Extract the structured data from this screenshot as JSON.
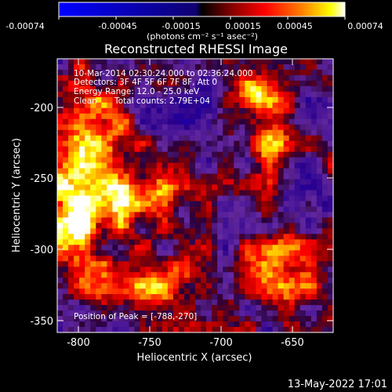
{
  "colorbar": {
    "ticks": [
      "-0.00074",
      "-0.00045",
      "-0.00015",
      "0.00015",
      "0.00045",
      "0.00074"
    ],
    "units": "(photons cm⁻² s⁻¹ asec⁻²)"
  },
  "footer": {
    "date": "13-May-2022 17:01"
  },
  "chart_data": {
    "type": "heatmap",
    "title": "Reconstructed RHESSI Image",
    "xlabel": "Heliocentric X (arcsec)",
    "ylabel": "Heliocentric Y (arcsec)",
    "xlim": [
      -815,
      -622
    ],
    "ylim": [
      -357,
      -165
    ],
    "x_ticks": [
      "-800",
      "-750",
      "-700",
      "-650"
    ],
    "y_ticks": [
      "-200",
      "-250",
      "-300",
      "-350"
    ],
    "colorbar_range": [
      -0.00074,
      0.00074
    ],
    "annotations": [
      "10-Mar-2014 02:30:24.000 to 02:36:24.000",
      "Detectors: 3F 4F 5F 6F 7F 8F, Att 0",
      "Energy Range: 12.0 - 25.0 keV",
      "Clean",
      "Total counts: 2.79E+04",
      "Position of Peak = [-788,-270]"
    ],
    "peak": {
      "x": -788,
      "y": -270
    },
    "colormap_colors": [
      "#0000ff",
      "#000000",
      "#800000",
      "#ff0000",
      "#ff8000",
      "#ffff00",
      "#ffffff"
    ]
  }
}
